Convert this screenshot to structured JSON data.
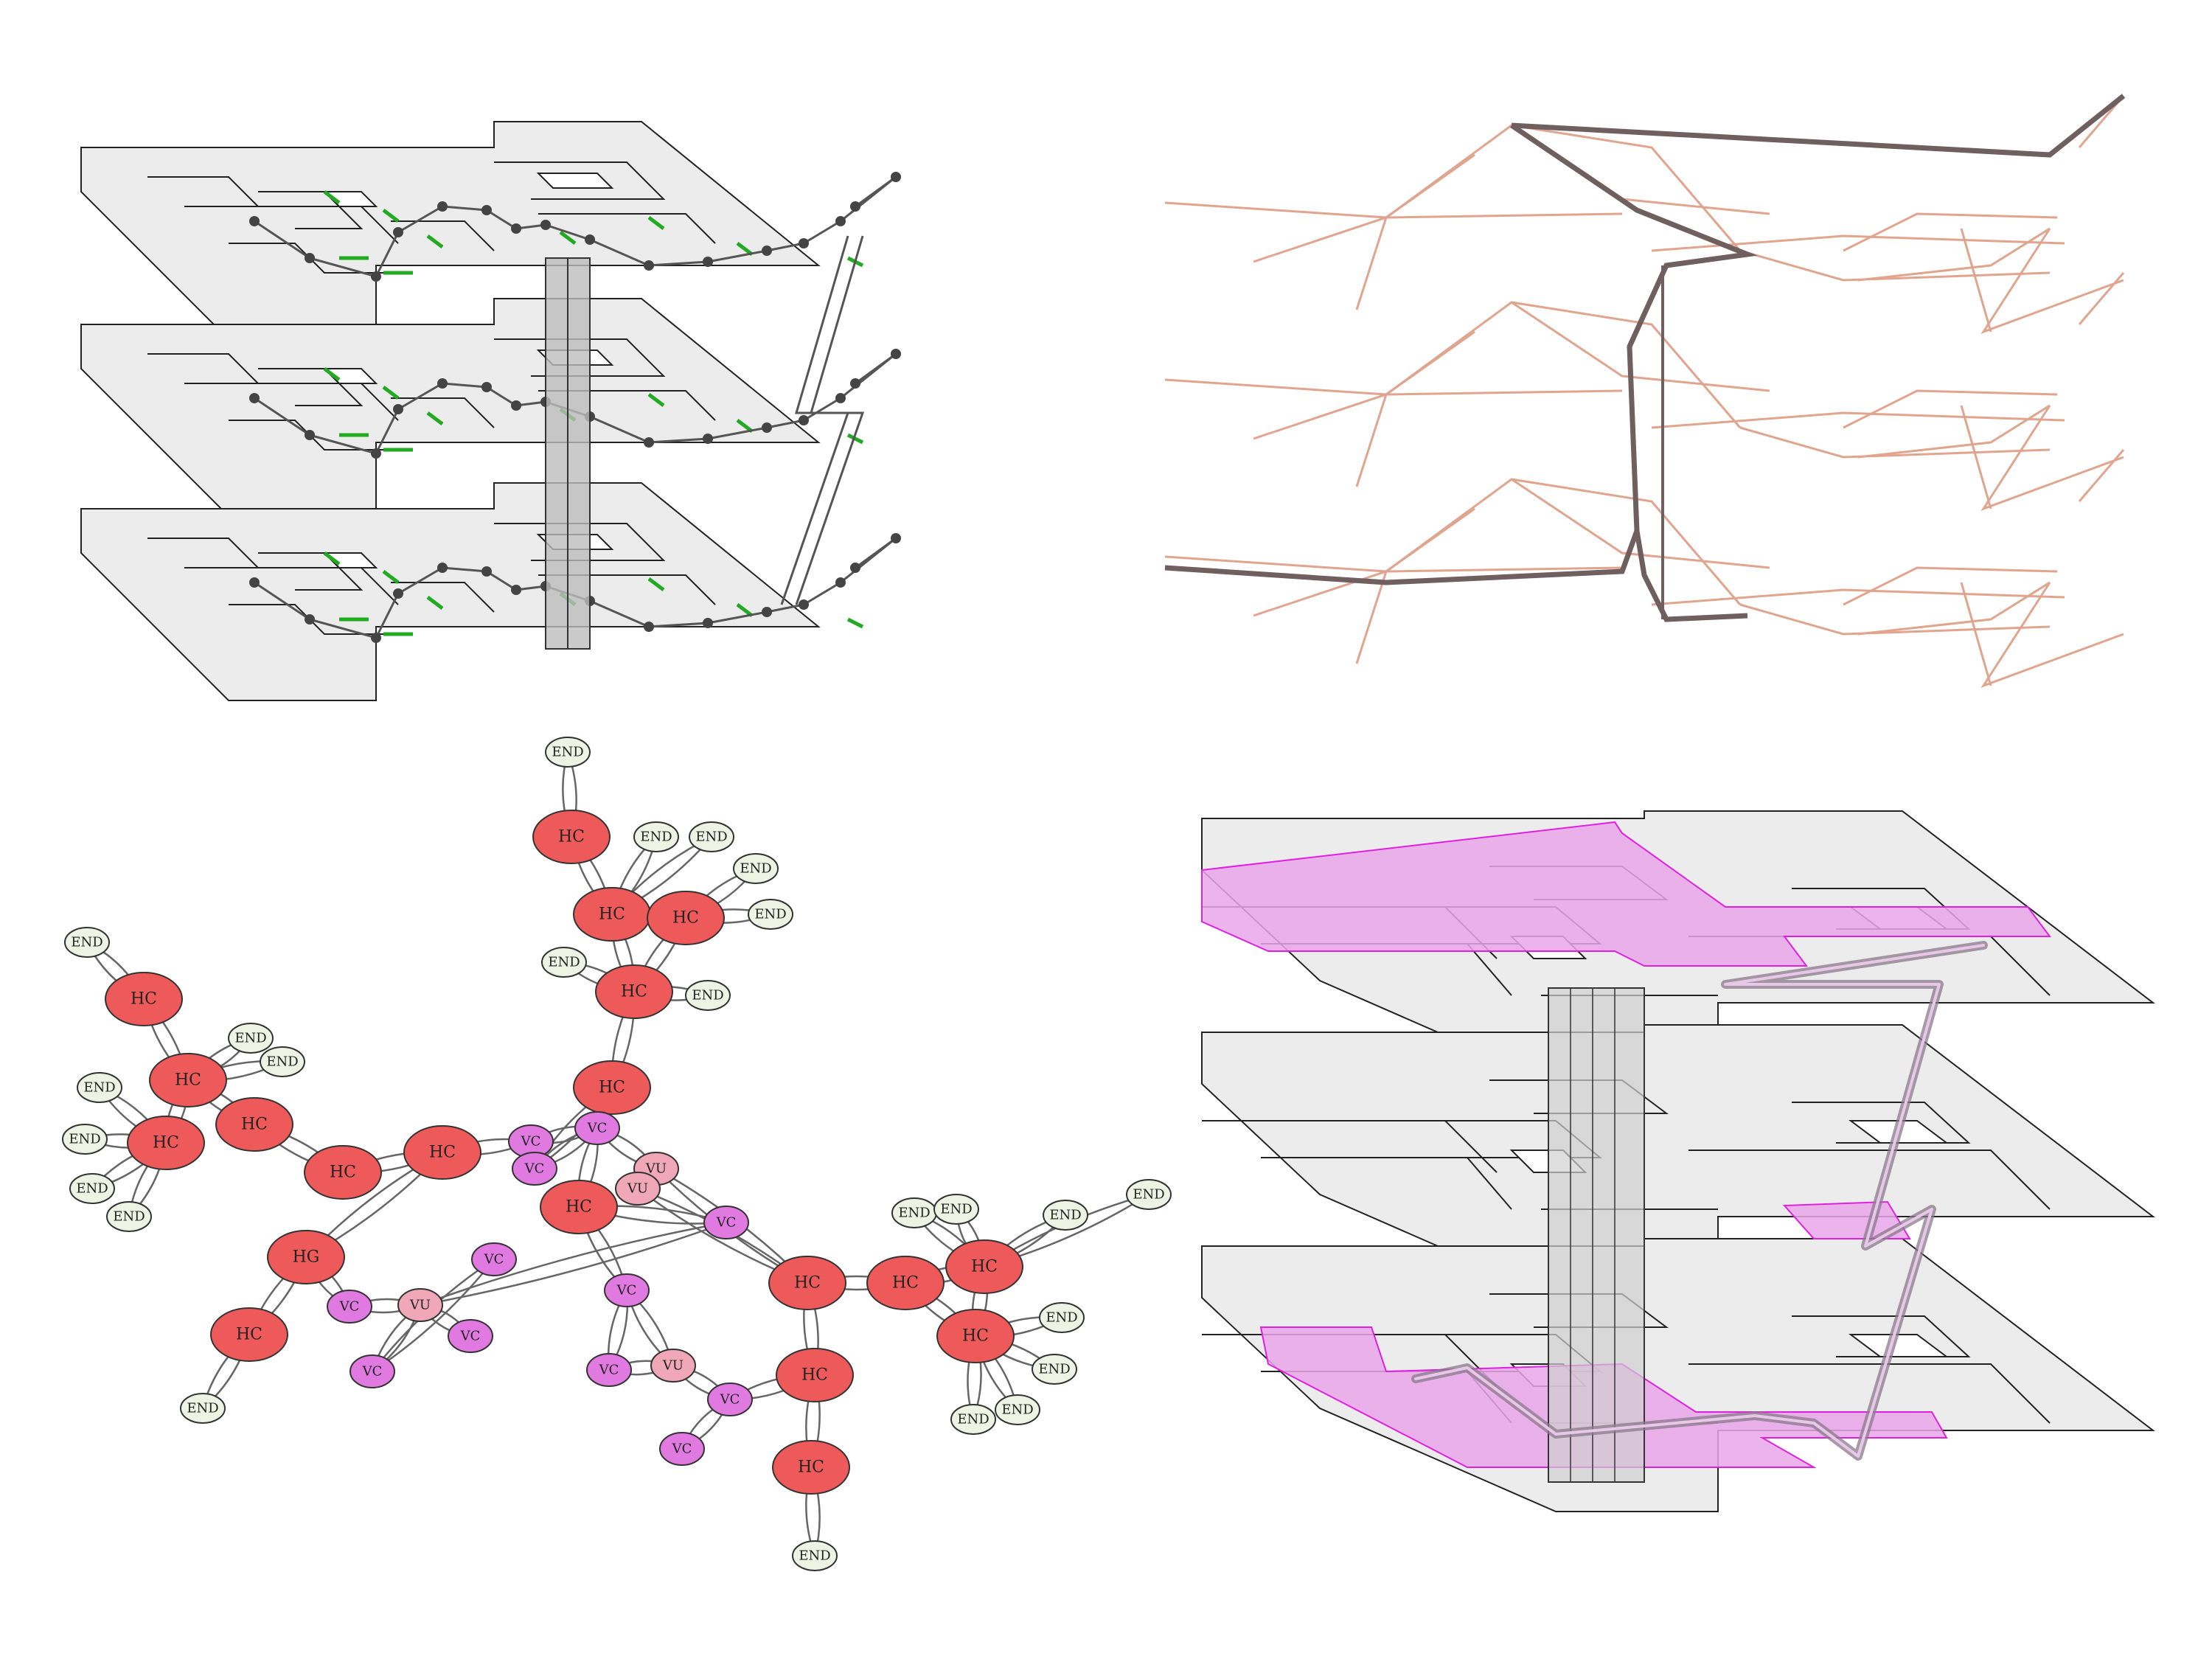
{
  "panels": {
    "top_left": {
      "kind": "multi-floor-navigation-network"
    },
    "top_right": {
      "kind": "extracted-path-network"
    },
    "bottom_left": {
      "kind": "node-type-graph"
    },
    "bottom_right": {
      "kind": "highlighted-route-floors"
    }
  },
  "colors": {
    "plate": "#ececec",
    "plate_stroke": "#222222",
    "door_green": "#22aa22",
    "network_gray": "#555555",
    "path_pink": "#e0a58f",
    "path_dark": "#6f5f5f",
    "hc_fill": "#ee5a5a",
    "vc_fill": "#e07ae0",
    "vu_fill": "#f0a8b8",
    "end_fill": "#eef3e4",
    "highlight": "#eaa6ea",
    "highlight_stroke": "#e020e0"
  },
  "node_types": {
    "hc": "HC",
    "hg": "HG",
    "vc": "VC",
    "vu": "VU",
    "end": "END"
  },
  "graph": {
    "nodes": [
      {
        "id": "n1",
        "type": "end",
        "label": "END"
      },
      {
        "id": "n2",
        "type": "hc",
        "label": "HC"
      },
      {
        "id": "n3",
        "type": "end",
        "label": "END"
      },
      {
        "id": "n4",
        "type": "end",
        "label": "END"
      },
      {
        "id": "n5",
        "type": "end",
        "label": "END"
      },
      {
        "id": "n6",
        "type": "end",
        "label": "END"
      },
      {
        "id": "n7",
        "type": "hc",
        "label": "HC"
      },
      {
        "id": "n8",
        "type": "hc",
        "label": "HC"
      },
      {
        "id": "n9",
        "type": "end",
        "label": "END"
      },
      {
        "id": "n10",
        "type": "hc",
        "label": "HC"
      },
      {
        "id": "n11",
        "type": "end",
        "label": "END"
      },
      {
        "id": "n12",
        "type": "end",
        "label": "END"
      },
      {
        "id": "n13",
        "type": "hc",
        "label": "HC"
      },
      {
        "id": "n14",
        "type": "hc",
        "label": "HC"
      },
      {
        "id": "n15",
        "type": "end",
        "label": "END"
      },
      {
        "id": "n16",
        "type": "end",
        "label": "END"
      },
      {
        "id": "n17",
        "type": "hc",
        "label": "HC"
      },
      {
        "id": "n18",
        "type": "end",
        "label": "END"
      },
      {
        "id": "n19",
        "type": "end",
        "label": "END"
      },
      {
        "id": "n20",
        "type": "hc",
        "label": "HC"
      },
      {
        "id": "n21",
        "type": "hc",
        "label": "HC"
      },
      {
        "id": "n22",
        "type": "end",
        "label": "END"
      },
      {
        "id": "n23",
        "type": "end",
        "label": "END"
      },
      {
        "id": "n24",
        "type": "hc",
        "label": "HC"
      },
      {
        "id": "n25",
        "type": "hc",
        "label": "HC"
      },
      {
        "id": "n26",
        "type": "vc",
        "label": "VC"
      },
      {
        "id": "n27",
        "type": "vc",
        "label": "VC"
      },
      {
        "id": "n28",
        "type": "vc",
        "label": "VC"
      },
      {
        "id": "n29",
        "type": "vu",
        "label": "VU"
      },
      {
        "id": "n30",
        "type": "vu",
        "label": "VU"
      },
      {
        "id": "n31",
        "type": "hc",
        "label": "HC"
      },
      {
        "id": "n32",
        "type": "vc",
        "label": "VC"
      },
      {
        "id": "n33",
        "type": "hg",
        "label": "HG"
      },
      {
        "id": "n34",
        "type": "hc",
        "label": "HC"
      },
      {
        "id": "n35",
        "type": "end",
        "label": "END"
      },
      {
        "id": "n36",
        "type": "vc",
        "label": "VC"
      },
      {
        "id": "n37",
        "type": "vu",
        "label": "VU"
      },
      {
        "id": "n38",
        "type": "vc",
        "label": "VC"
      },
      {
        "id": "n39",
        "type": "vc",
        "label": "VC"
      },
      {
        "id": "n40",
        "type": "vc",
        "label": "VC"
      },
      {
        "id": "n41",
        "type": "vc",
        "label": "VC"
      },
      {
        "id": "n42",
        "type": "vc",
        "label": "VC"
      },
      {
        "id": "n43",
        "type": "vu",
        "label": "VU"
      },
      {
        "id": "n44",
        "type": "vc",
        "label": "VC"
      },
      {
        "id": "n45",
        "type": "vc",
        "label": "VC"
      },
      {
        "id": "n46",
        "type": "hc",
        "label": "HC"
      },
      {
        "id": "n47",
        "type": "hc",
        "label": "HC"
      },
      {
        "id": "n48",
        "type": "hc",
        "label": "HC"
      },
      {
        "id": "n49",
        "type": "end",
        "label": "END"
      },
      {
        "id": "n50",
        "type": "hc",
        "label": "HC"
      },
      {
        "id": "n51",
        "type": "hc",
        "label": "HC"
      },
      {
        "id": "n52",
        "type": "hc",
        "label": "HC"
      },
      {
        "id": "n53",
        "type": "end",
        "label": "END"
      },
      {
        "id": "n54",
        "type": "end",
        "label": "END"
      },
      {
        "id": "n55",
        "type": "end",
        "label": "END"
      },
      {
        "id": "n56",
        "type": "end",
        "label": "END"
      },
      {
        "id": "n57",
        "type": "end",
        "label": "END"
      },
      {
        "id": "n58",
        "type": "end",
        "label": "END"
      },
      {
        "id": "n59",
        "type": "end",
        "label": "END"
      },
      {
        "id": "n60",
        "type": "end",
        "label": "END"
      }
    ],
    "edges": [
      [
        "n1",
        "n2"
      ],
      [
        "n2",
        "n7"
      ],
      [
        "n7",
        "n3"
      ],
      [
        "n7",
        "n4"
      ],
      [
        "n8",
        "n5"
      ],
      [
        "n8",
        "n6"
      ],
      [
        "n7",
        "n8"
      ],
      [
        "n7",
        "n10"
      ],
      [
        "n8",
        "n10"
      ],
      [
        "n10",
        "n9"
      ],
      [
        "n10",
        "n11"
      ],
      [
        "n10",
        "n17"
      ],
      [
        "n12",
        "n13"
      ],
      [
        "n13",
        "n14"
      ],
      [
        "n14",
        "n15"
      ],
      [
        "n14",
        "n16"
      ],
      [
        "n14",
        "n20"
      ],
      [
        "n14",
        "n21"
      ],
      [
        "n20",
        "n18"
      ],
      [
        "n20",
        "n19"
      ],
      [
        "n20",
        "n22"
      ],
      [
        "n20",
        "n23"
      ],
      [
        "n21",
        "n24"
      ],
      [
        "n24",
        "n25"
      ],
      [
        "n25",
        "n26"
      ],
      [
        "n26",
        "n27"
      ],
      [
        "n27",
        "n28"
      ],
      [
        "n28",
        "n17"
      ],
      [
        "n27",
        "n29"
      ],
      [
        "n29",
        "n30"
      ],
      [
        "n27",
        "n31"
      ],
      [
        "n31",
        "n32"
      ],
      [
        "n32",
        "n37"
      ],
      [
        "n25",
        "n33"
      ],
      [
        "n33",
        "n34"
      ],
      [
        "n34",
        "n35"
      ],
      [
        "n33",
        "n36"
      ],
      [
        "n36",
        "n37"
      ],
      [
        "n37",
        "n38"
      ],
      [
        "n37",
        "n39"
      ],
      [
        "n39",
        "n40"
      ],
      [
        "n31",
        "n41"
      ],
      [
        "n41",
        "n42"
      ],
      [
        "n41",
        "n43"
      ],
      [
        "n42",
        "n43"
      ],
      [
        "n43",
        "n44"
      ],
      [
        "n44",
        "n45"
      ],
      [
        "n29",
        "n46"
      ],
      [
        "n30",
        "n46"
      ],
      [
        "n44",
        "n47"
      ],
      [
        "n46",
        "n47"
      ],
      [
        "n47",
        "n48"
      ],
      [
        "n48",
        "n49"
      ],
      [
        "n46",
        "n50"
      ],
      [
        "n50",
        "n51"
      ],
      [
        "n51",
        "n52"
      ],
      [
        "n50",
        "n52"
      ],
      [
        "n51",
        "n53"
      ],
      [
        "n51",
        "n54"
      ],
      [
        "n51",
        "n55"
      ],
      [
        "n52",
        "n56"
      ],
      [
        "n52",
        "n57"
      ],
      [
        "n52",
        "n58"
      ],
      [
        "n52",
        "n59"
      ],
      [
        "n51",
        "n60"
      ]
    ]
  }
}
